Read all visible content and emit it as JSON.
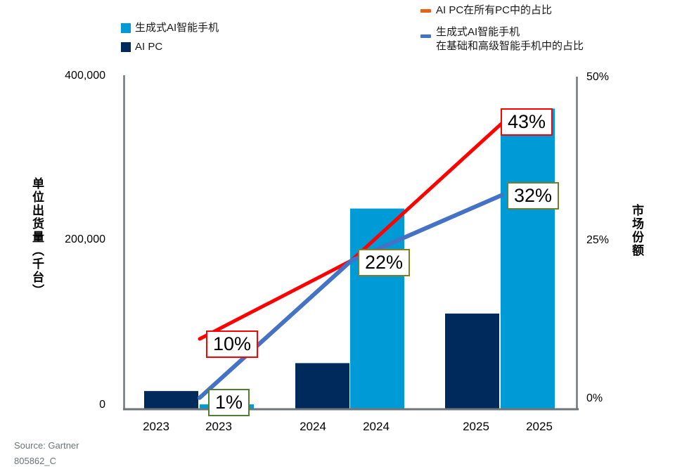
{
  "bar_legend": {
    "items": [
      {
        "label": "生成式AI智能手机",
        "color": "#009AD7"
      },
      {
        "label": "AI PC",
        "color": "#002A5C"
      }
    ]
  },
  "line_legend": {
    "items": [
      {
        "label": "AI PC在所有PC中的占比",
        "swatch_color": "#E8611C"
      },
      {
        "label_line1": "生成式AI智能手机",
        "label_line2": "在基础和高级智能手机中的占比",
        "swatch_color": "#4472C4"
      }
    ]
  },
  "axes": {
    "left": {
      "title": "单位出货量（千台）",
      "tick_labels": [
        "400,000",
        "200,000",
        "0"
      ]
    },
    "right": {
      "title": "市场份额",
      "tick_labels": [
        "50%",
        "25%",
        "0%"
      ]
    },
    "x": {
      "tick_labels": [
        "2023",
        "2023",
        "2024",
        "2024",
        "2025",
        "2025"
      ]
    }
  },
  "chart_data": {
    "type": "combo-bar-line",
    "years": [
      "2023",
      "2024",
      "2025"
    ],
    "left_axis": {
      "label": "单位出货量（千台）",
      "range": [
        0,
        400000
      ],
      "ticks": [
        0,
        200000,
        400000
      ]
    },
    "right_axis": {
      "label": "市场份额",
      "range_pct": [
        0,
        50
      ],
      "ticks_pct": [
        0,
        25,
        50
      ]
    },
    "series": [
      {
        "name": "AI PC",
        "type": "bar",
        "axis": "left",
        "color": "#002A5C",
        "values_thousand_units": [
          21000,
          54500,
          114000
        ]
      },
      {
        "name": "生成式AI智能手机",
        "type": "bar",
        "axis": "left",
        "color": "#009AD7",
        "values_thousand_units": [
          5000,
          240000,
          360000
        ]
      },
      {
        "name": "AI PC在所有PC中的占比",
        "type": "line",
        "axis": "right",
        "color": "#FF0000",
        "values_pct": [
          10,
          22,
          43
        ]
      },
      {
        "name": "生成式AI智能手机在基础和高级智能手机中的占比",
        "type": "line",
        "axis": "right",
        "color": "#4472C4",
        "values_pct": [
          1,
          22,
          32
        ]
      }
    ],
    "point_labels": [
      {
        "text": "10%",
        "series": "AI PC在所有PC中的占比",
        "year": "2023",
        "border_color": "#FF0000"
      },
      {
        "text": "1%",
        "series": "生成式AI智能手机在基础和高级智能手机中的占比",
        "year": "2023",
        "border_color": "#507E32"
      },
      {
        "text": "22%",
        "series": "AI PC在所有PC中的占比 / 生成式AI智能手机在基础和高级智能手机中的占比",
        "year": "2024",
        "border_color": "#7F7F28"
      },
      {
        "text": "32%",
        "series": "生成式AI智能手机在基础和高级智能手机中的占比",
        "year": "2025",
        "border_color": "#6E7F32"
      },
      {
        "text": "43%",
        "series": "AI PC在所有PC中的占比",
        "year": "2025",
        "border_color": "#FF0000"
      }
    ]
  },
  "footer": {
    "source": "Source: Gartner",
    "doc_id": "805862_C"
  }
}
